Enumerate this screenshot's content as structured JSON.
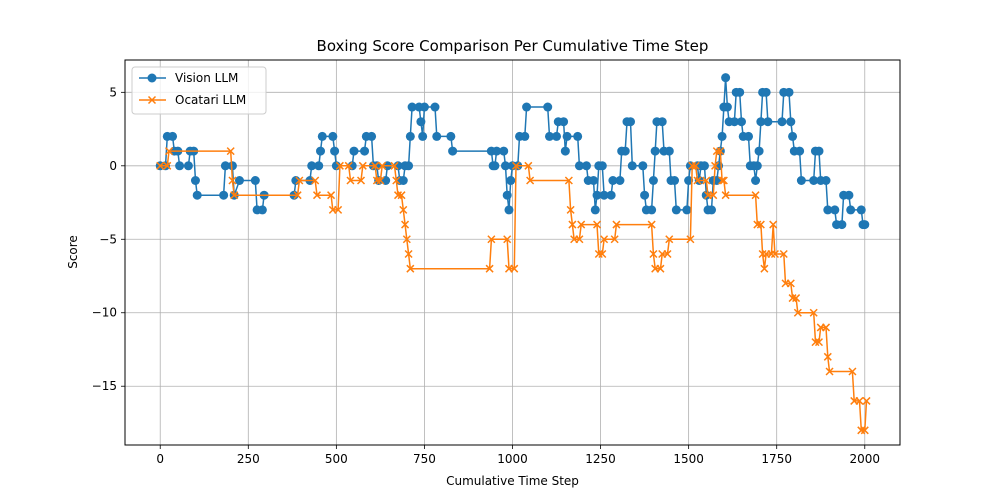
{
  "chart_data": {
    "type": "line",
    "title": "Boxing Score Comparison Per Cumulative Time Step",
    "xlabel": "Cumulative Time Step",
    "ylabel": "Score",
    "xlim": [
      -100,
      2100
    ],
    "ylim": [
      -19,
      7.2
    ],
    "xticks": [
      0,
      250,
      500,
      750,
      1000,
      1250,
      1500,
      1750,
      2000
    ],
    "xtick_labels": [
      "0",
      "250",
      "500",
      "750",
      "1000",
      "1250",
      "1500",
      "1750",
      "2000"
    ],
    "yticks": [
      5,
      0,
      -5,
      -10,
      -15
    ],
    "ytick_labels": [
      "5",
      "0",
      "−5",
      "−10",
      "−15"
    ],
    "grid": true,
    "legend": "top-left",
    "series": [
      {
        "name": "Vision LLM",
        "color": "#1f77b4",
        "marker": "circle",
        "points": [
          [
            0,
            0
          ],
          [
            15,
            0
          ],
          [
            20,
            2
          ],
          [
            35,
            2
          ],
          [
            40,
            1
          ],
          [
            50,
            1
          ],
          [
            55,
            0
          ],
          [
            80,
            0
          ],
          [
            85,
            1
          ],
          [
            95,
            1
          ],
          [
            100,
            -1
          ],
          [
            105,
            -2
          ],
          [
            180,
            -2
          ],
          [
            185,
            0
          ],
          [
            205,
            0
          ],
          [
            210,
            -2
          ],
          [
            225,
            -1
          ],
          [
            270,
            -1
          ],
          [
            275,
            -3
          ],
          [
            290,
            -3
          ],
          [
            295,
            -2
          ],
          [
            380,
            -2
          ],
          [
            385,
            -1
          ],
          [
            425,
            -1
          ],
          [
            430,
            0
          ],
          [
            450,
            0
          ],
          [
            455,
            1
          ],
          [
            460,
            2
          ],
          [
            490,
            2
          ],
          [
            495,
            1
          ],
          [
            500,
            0
          ],
          [
            545,
            0
          ],
          [
            550,
            1
          ],
          [
            580,
            1
          ],
          [
            585,
            2
          ],
          [
            600,
            2
          ],
          [
            605,
            0
          ],
          [
            615,
            0
          ],
          [
            620,
            -1
          ],
          [
            640,
            -1
          ],
          [
            645,
            0
          ],
          [
            675,
            0
          ],
          [
            680,
            -1
          ],
          [
            690,
            -1
          ],
          [
            695,
            0
          ],
          [
            705,
            0
          ],
          [
            710,
            2
          ],
          [
            715,
            4
          ],
          [
            735,
            4
          ],
          [
            740,
            3
          ],
          [
            745,
            2
          ],
          [
            750,
            4
          ],
          [
            780,
            4
          ],
          [
            785,
            2
          ],
          [
            825,
            2
          ],
          [
            830,
            1
          ],
          [
            940,
            1
          ],
          [
            945,
            0
          ],
          [
            950,
            0
          ],
          [
            955,
            1
          ],
          [
            975,
            1
          ],
          [
            980,
            0
          ],
          [
            985,
            -2
          ],
          [
            990,
            -3
          ],
          [
            995,
            -1
          ],
          [
            1000,
            0
          ],
          [
            1015,
            0
          ],
          [
            1020,
            2
          ],
          [
            1035,
            2
          ],
          [
            1040,
            4
          ],
          [
            1100,
            4
          ],
          [
            1105,
            2
          ],
          [
            1125,
            2
          ],
          [
            1130,
            3
          ],
          [
            1145,
            3
          ],
          [
            1150,
            1
          ],
          [
            1155,
            2
          ],
          [
            1185,
            2
          ],
          [
            1190,
            0
          ],
          [
            1210,
            0
          ],
          [
            1215,
            -1
          ],
          [
            1230,
            -1
          ],
          [
            1235,
            -3
          ],
          [
            1240,
            -2
          ],
          [
            1245,
            0
          ],
          [
            1255,
            0
          ],
          [
            1260,
            -2
          ],
          [
            1280,
            -2
          ],
          [
            1285,
            -1
          ],
          [
            1305,
            -1
          ],
          [
            1310,
            1
          ],
          [
            1320,
            1
          ],
          [
            1325,
            3
          ],
          [
            1335,
            3
          ],
          [
            1340,
            0
          ],
          [
            1370,
            0
          ],
          [
            1375,
            -2
          ],
          [
            1380,
            -3
          ],
          [
            1395,
            -3
          ],
          [
            1400,
            -1
          ],
          [
            1405,
            1
          ],
          [
            1410,
            3
          ],
          [
            1425,
            3
          ],
          [
            1430,
            1
          ],
          [
            1445,
            1
          ],
          [
            1450,
            -1
          ],
          [
            1460,
            -1
          ],
          [
            1465,
            -3
          ],
          [
            1495,
            -3
          ],
          [
            1500,
            -1
          ],
          [
            1505,
            0
          ],
          [
            1525,
            0
          ],
          [
            1530,
            -1
          ],
          [
            1535,
            0
          ],
          [
            1545,
            0
          ],
          [
            1550,
            -2
          ],
          [
            1555,
            -3
          ],
          [
            1565,
            -3
          ],
          [
            1570,
            -1
          ],
          [
            1580,
            -1
          ],
          [
            1585,
            0
          ],
          [
            1590,
            1
          ],
          [
            1595,
            2
          ],
          [
            1600,
            4
          ],
          [
            1605,
            6
          ],
          [
            1610,
            4
          ],
          [
            1615,
            3
          ],
          [
            1630,
            3
          ],
          [
            1635,
            5
          ],
          [
            1645,
            5
          ],
          [
            1650,
            3
          ],
          [
            1655,
            2
          ],
          [
            1670,
            2
          ],
          [
            1675,
            0
          ],
          [
            1685,
            0
          ],
          [
            1690,
            -1
          ],
          [
            1695,
            0
          ],
          [
            1700,
            1
          ],
          [
            1705,
            3
          ],
          [
            1710,
            5
          ],
          [
            1720,
            5
          ],
          [
            1725,
            3
          ],
          [
            1765,
            3
          ],
          [
            1770,
            5
          ],
          [
            1785,
            5
          ],
          [
            1790,
            3
          ],
          [
            1795,
            2
          ],
          [
            1800,
            1
          ],
          [
            1815,
            1
          ],
          [
            1820,
            -1
          ],
          [
            1855,
            -1
          ],
          [
            1860,
            1
          ],
          [
            1870,
            1
          ],
          [
            1875,
            -1
          ],
          [
            1890,
            -1
          ],
          [
            1895,
            -3
          ],
          [
            1915,
            -3
          ],
          [
            1920,
            -4
          ],
          [
            1935,
            -4
          ],
          [
            1940,
            -2
          ],
          [
            1955,
            -2
          ],
          [
            1960,
            -3
          ],
          [
            1990,
            -3
          ],
          [
            1995,
            -4
          ],
          [
            2000,
            -4
          ]
        ]
      },
      {
        "name": "Ocatari LLM",
        "color": "#ff7f0e",
        "marker": "x",
        "points": [
          [
            0,
            0
          ],
          [
            20,
            0
          ],
          [
            25,
            1
          ],
          [
            200,
            1
          ],
          [
            205,
            -1
          ],
          [
            210,
            -2
          ],
          [
            390,
            -2
          ],
          [
            395,
            -1
          ],
          [
            440,
            -1
          ],
          [
            445,
            -2
          ],
          [
            485,
            -2
          ],
          [
            490,
            -3
          ],
          [
            505,
            -3
          ],
          [
            510,
            0
          ],
          [
            535,
            0
          ],
          [
            540,
            -1
          ],
          [
            570,
            -1
          ],
          [
            575,
            0
          ],
          [
            610,
            0
          ],
          [
            615,
            -1
          ],
          [
            625,
            -1
          ],
          [
            630,
            0
          ],
          [
            665,
            0
          ],
          [
            670,
            -1
          ],
          [
            675,
            -2
          ],
          [
            685,
            -2
          ],
          [
            690,
            -3
          ],
          [
            695,
            -4
          ],
          [
            700,
            -5
          ],
          [
            705,
            -6
          ],
          [
            710,
            -7
          ],
          [
            935,
            -7
          ],
          [
            940,
            -5
          ],
          [
            985,
            -5
          ],
          [
            990,
            -7
          ],
          [
            1005,
            -7
          ],
          [
            1010,
            0
          ],
          [
            1045,
            0
          ],
          [
            1050,
            -1
          ],
          [
            1160,
            -1
          ],
          [
            1165,
            -3
          ],
          [
            1170,
            -4
          ],
          [
            1175,
            -5
          ],
          [
            1190,
            -5
          ],
          [
            1195,
            -4
          ],
          [
            1240,
            -4
          ],
          [
            1245,
            -6
          ],
          [
            1255,
            -6
          ],
          [
            1260,
            -5
          ],
          [
            1290,
            -5
          ],
          [
            1295,
            -4
          ],
          [
            1395,
            -4
          ],
          [
            1400,
            -6
          ],
          [
            1405,
            -7
          ],
          [
            1420,
            -7
          ],
          [
            1425,
            -6
          ],
          [
            1440,
            -6
          ],
          [
            1445,
            -5
          ],
          [
            1505,
            -5
          ],
          [
            1510,
            0
          ],
          [
            1520,
            0
          ],
          [
            1525,
            -1
          ],
          [
            1550,
            -1
          ],
          [
            1555,
            -2
          ],
          [
            1570,
            -2
          ],
          [
            1575,
            0
          ],
          [
            1580,
            1
          ],
          [
            1590,
            1
          ],
          [
            1595,
            -1
          ],
          [
            1600,
            -1
          ],
          [
            1605,
            -2
          ],
          [
            1690,
            -2
          ],
          [
            1695,
            -4
          ],
          [
            1705,
            -4
          ],
          [
            1710,
            -6
          ],
          [
            1715,
            -7
          ],
          [
            1720,
            -6
          ],
          [
            1735,
            -6
          ],
          [
            1740,
            -4
          ],
          [
            1745,
            -6
          ],
          [
            1770,
            -6
          ],
          [
            1775,
            -8
          ],
          [
            1790,
            -8
          ],
          [
            1795,
            -9
          ],
          [
            1805,
            -9
          ],
          [
            1810,
            -10
          ],
          [
            1855,
            -10
          ],
          [
            1860,
            -12
          ],
          [
            1870,
            -12
          ],
          [
            1875,
            -11
          ],
          [
            1890,
            -11
          ],
          [
            1895,
            -13
          ],
          [
            1900,
            -14
          ],
          [
            1965,
            -14
          ],
          [
            1970,
            -16
          ],
          [
            1985,
            -16
          ],
          [
            1990,
            -18
          ],
          [
            2000,
            -18
          ],
          [
            2005,
            -16
          ]
        ]
      }
    ]
  }
}
